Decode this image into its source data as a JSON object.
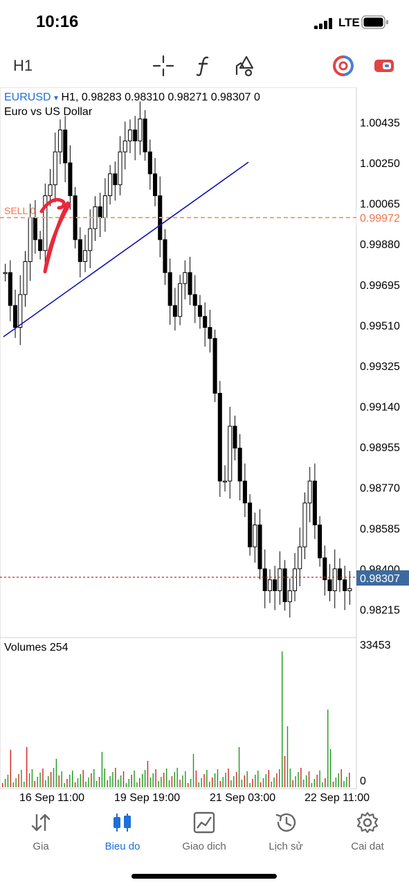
{
  "status": {
    "time": "10:16",
    "network": "LTE"
  },
  "toolbar": {
    "timeframe": "H1"
  },
  "chart_header": {
    "symbol": "EURUSD",
    "symbol_arrow": "▾",
    "ohlc": "H1, 0.98283 0.98310 0.98271 0.98307 0",
    "description": "Euro vs US Dollar"
  },
  "price_axis": {
    "labels": [
      "1.00435",
      "1.00250",
      "1.00065",
      "0.99880",
      "0.99695",
      "0.99510",
      "0.99325",
      "0.99140",
      "0.98955",
      "0.98770",
      "0.98585",
      "0.98400",
      "0.98215"
    ],
    "sell_price": "0.99972",
    "current_price": "0.98307",
    "sell_label": "SELL 0"
  },
  "volumes": {
    "label": "Volumes 254",
    "max_label": "33453",
    "min_label": "0"
  },
  "time_axis": {
    "labels": [
      "16 Sep 11:00",
      "19 Sep 19:00",
      "21 Sep 03:00",
      "22 Sep 11:00"
    ]
  },
  "colors": {
    "accent": "#1e6fd9",
    "sell_line": "#f4a384",
    "current_line": "#d62020",
    "current_bg": "#3d6a9e",
    "trendline": "#1010b0",
    "vol_up": "#1a9a1a",
    "vol_down": "#d62020",
    "annotation": "#e8293a"
  },
  "nav": [
    {
      "label": "Gia",
      "icon": "quotes-icon"
    },
    {
      "label": "Bieu do",
      "icon": "chart-icon",
      "active": true
    },
    {
      "label": "Giao dich",
      "icon": "trade-icon"
    },
    {
      "label": "Lịch sử",
      "icon": "history-icon"
    },
    {
      "label": "Cai dat",
      "icon": "settings-icon"
    }
  ],
  "chart_data": {
    "type": "candlestick",
    "symbol": "EURUSD",
    "timeframe": "H1",
    "ylim": [
      0.9815,
      1.0055
    ],
    "close": [
      0.9975,
      0.996,
      0.995,
      0.9965,
      0.998,
      1.0,
      0.999,
      0.9985,
      1.001,
      1.0015,
      1.003,
      1.004,
      1.0025,
      1.001,
      0.999,
      0.998,
      0.9985,
      0.9995,
      1.0005,
      1.0,
      1.001,
      1.002,
      1.0015,
      1.003,
      1.0035,
      1.004,
      1.0035,
      1.0045,
      1.003,
      1.002,
      1.001,
      0.999,
      0.9975,
      0.996,
      0.9955,
      0.997,
      0.9975,
      0.9965,
      0.996,
      0.9955,
      0.995,
      0.9945,
      0.992,
      0.988,
      0.988,
      0.9905,
      0.9895,
      0.988,
      0.987,
      0.985,
      0.986,
      0.984,
      0.983,
      0.9835,
      0.983,
      0.984,
      0.9825,
      0.983,
      0.984,
      0.985,
      0.987,
      0.988,
      0.986,
      0.9845,
      0.9835,
      0.983,
      0.984,
      0.9835,
      0.983,
      0.9831
    ],
    "volume_max": 33453
  }
}
